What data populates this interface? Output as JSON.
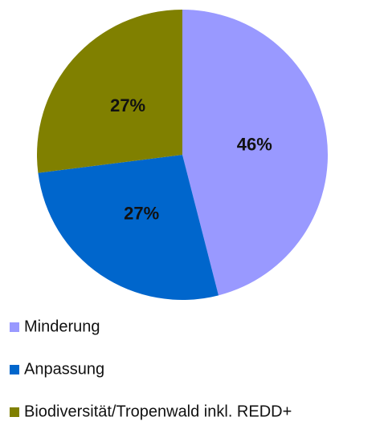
{
  "chart_data": {
    "type": "pie",
    "categories": [
      "Minderung",
      "Anpassung",
      "Biodiversität/Tropenwald inkl. REDD+"
    ],
    "values": [
      46,
      27,
      27
    ],
    "value_labels": [
      "46%",
      "27%",
      "27%"
    ],
    "colors": [
      "#9999ff",
      "#0066cc",
      "#808000"
    ],
    "legend": "bottom"
  }
}
